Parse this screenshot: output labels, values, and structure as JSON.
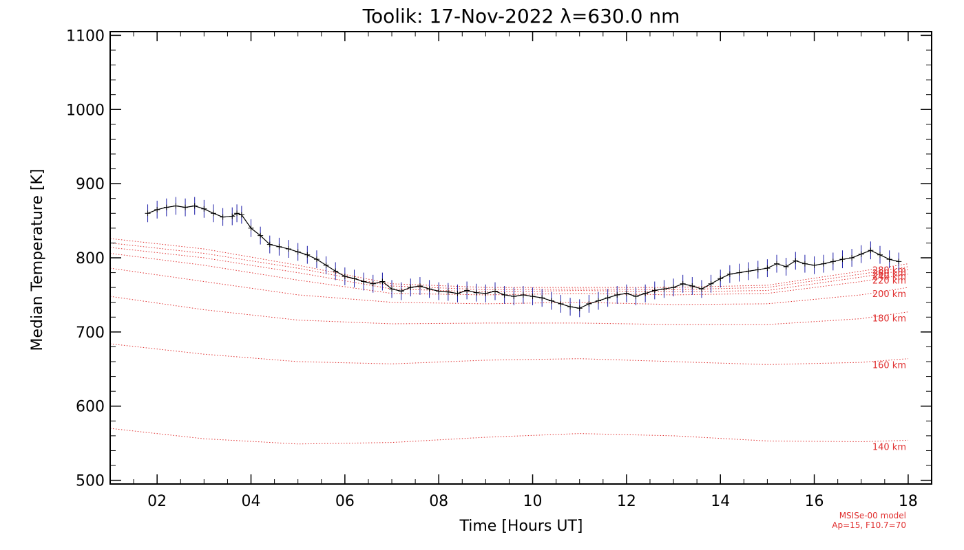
{
  "chart_data": {
    "type": "line",
    "title": "Toolik: 17-Nov-2022 λ=630.0 nm",
    "xlabel": "Time [Hours UT]",
    "ylabel": "Median Temperature [K]",
    "xlim": [
      1.0,
      18.5
    ],
    "ylim": [
      495,
      1105
    ],
    "x_ticks": [
      2,
      4,
      6,
      8,
      10,
      12,
      14,
      16,
      18
    ],
    "x_tick_labels": [
      "02",
      "04",
      "06",
      "08",
      "10",
      "12",
      "14",
      "16",
      "18"
    ],
    "y_ticks": [
      500,
      600,
      700,
      800,
      900,
      1000,
      1100
    ],
    "y_tick_labels": [
      "500",
      "600",
      "700",
      "800",
      "900",
      "1000",
      "1100"
    ],
    "grid": false,
    "colors": {
      "measurement": "#000000",
      "error_bars": "#1a1aa6",
      "model": "#e03030"
    },
    "measurement": {
      "name": "",
      "x": [
        1.8,
        2.0,
        2.2,
        2.4,
        2.6,
        2.8,
        3.0,
        3.2,
        3.4,
        3.6,
        3.7,
        3.8,
        4.0,
        4.2,
        4.4,
        4.6,
        4.8,
        5.0,
        5.2,
        5.4,
        5.6,
        5.8,
        6.0,
        6.2,
        6.4,
        6.6,
        6.8,
        7.0,
        7.2,
        7.4,
        7.6,
        7.8,
        8.0,
        8.2,
        8.4,
        8.6,
        8.8,
        9.0,
        9.2,
        9.4,
        9.6,
        9.8,
        10.0,
        10.2,
        10.4,
        10.6,
        10.8,
        11.0,
        11.2,
        11.4,
        11.6,
        11.8,
        12.0,
        12.2,
        12.4,
        12.6,
        12.8,
        13.0,
        13.2,
        13.4,
        13.6,
        13.8,
        14.0,
        14.2,
        14.4,
        14.6,
        14.8,
        15.0,
        15.2,
        15.4,
        15.6,
        15.8,
        16.0,
        16.2,
        16.4,
        16.6,
        16.8,
        17.0,
        17.2,
        17.4,
        17.6,
        17.8
      ],
      "y": [
        860,
        865,
        868,
        870,
        868,
        870,
        866,
        860,
        855,
        856,
        860,
        858,
        840,
        830,
        818,
        815,
        812,
        808,
        804,
        798,
        790,
        782,
        775,
        772,
        768,
        765,
        768,
        758,
        755,
        760,
        762,
        758,
        755,
        754,
        752,
        756,
        753,
        752,
        755,
        750,
        748,
        750,
        748,
        746,
        742,
        738,
        734,
        732,
        738,
        742,
        746,
        750,
        752,
        748,
        752,
        756,
        758,
        760,
        765,
        762,
        758,
        765,
        772,
        778,
        780,
        782,
        784,
        786,
        792,
        788,
        796,
        792,
        790,
        792,
        795,
        798,
        800,
        805,
        810,
        804,
        798,
        795
      ],
      "error": 12
    },
    "model_series": [
      {
        "name": "140 km",
        "label": "140 km",
        "x": [
          1.0,
          3.0,
          5.0,
          7.0,
          9.0,
          11.0,
          13.0,
          15.0,
          17.0,
          18.0
        ],
        "y": [
          570,
          556,
          549,
          551,
          558,
          563,
          560,
          553,
          552,
          554
        ]
      },
      {
        "name": "160 km",
        "label": "160 km",
        "x": [
          1.0,
          3.0,
          5.0,
          7.0,
          9.0,
          11.0,
          13.0,
          15.0,
          17.0,
          18.0
        ],
        "y": [
          684,
          670,
          660,
          657,
          662,
          664,
          660,
          656,
          659,
          664
        ]
      },
      {
        "name": "180 km",
        "label": "180 km",
        "x": [
          1.0,
          3.0,
          5.0,
          7.0,
          9.0,
          11.0,
          13.0,
          15.0,
          17.0,
          18.0
        ],
        "y": [
          748,
          730,
          716,
          711,
          712,
          712,
          710,
          710,
          718,
          727
        ]
      },
      {
        "name": "200 km",
        "label": "200 km",
        "x": [
          1.0,
          3.0,
          5.0,
          7.0,
          9.0,
          11.0,
          13.0,
          15.0,
          17.0,
          18.0
        ],
        "y": [
          786,
          768,
          750,
          740,
          738,
          740,
          737,
          738,
          750,
          760
        ]
      },
      {
        "name": "220 km",
        "label": "220 km",
        "x": [
          1.0,
          3.0,
          5.0,
          7.0,
          9.0,
          11.0,
          13.0,
          15.0,
          17.0,
          18.0
        ],
        "y": [
          806,
          790,
          770,
          752,
          750,
          752,
          750,
          752,
          768,
          778
        ]
      },
      {
        "name": "240 km",
        "label": "240 km",
        "x": [
          1.0,
          3.0,
          5.0,
          7.0,
          9.0,
          11.0,
          13.0,
          15.0,
          17.0,
          18.0
        ],
        "y": [
          814,
          800,
          780,
          758,
          754,
          756,
          754,
          756,
          774,
          784
        ]
      },
      {
        "name": "260 km",
        "label": "260 km",
        "x": [
          1.0,
          3.0,
          5.0,
          7.0,
          9.0,
          11.0,
          13.0,
          15.0,
          17.0,
          18.0
        ],
        "y": [
          820,
          806,
          786,
          762,
          757,
          758,
          757,
          760,
          778,
          788
        ]
      },
      {
        "name": "280 km",
        "label": "280 km",
        "x": [
          1.0,
          3.0,
          5.0,
          7.0,
          9.0,
          11.0,
          13.0,
          15.0,
          17.0,
          18.0
        ],
        "y": [
          826,
          812,
          790,
          765,
          760,
          760,
          760,
          763,
          782,
          792
        ]
      }
    ],
    "model_note": [
      "MSISe-00 model",
      "Ap=15, F10.7=70"
    ]
  }
}
